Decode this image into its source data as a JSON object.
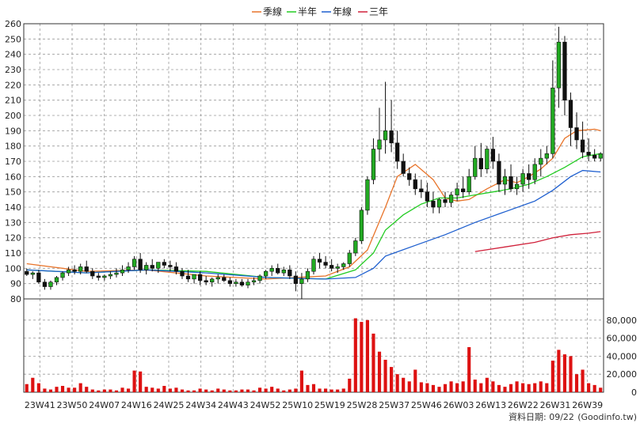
{
  "chart_data": {
    "type": "candlestick",
    "legend": [
      {
        "name": "季線",
        "color": "#e8742a"
      },
      {
        "name": "半年",
        "color": "#22cc22"
      },
      {
        "name": "年線",
        "color": "#1e5fcf"
      },
      {
        "name": "三年",
        "color": "#d0203a"
      }
    ],
    "price_axis": {
      "ylim": [
        80,
        260
      ],
      "ticks": [
        80,
        90,
        100,
        110,
        120,
        130,
        140,
        150,
        160,
        170,
        180,
        190,
        200,
        210,
        220,
        230,
        240,
        250,
        260
      ]
    },
    "volume_axis": {
      "ylim": [
        0,
        100000
      ],
      "ticks": [
        0,
        20000,
        40000,
        60000,
        80000
      ],
      "tick_labels": [
        "0",
        "20,000",
        "40,000",
        "60,000",
        "80,000"
      ]
    },
    "x_tick_labels": [
      "23W41",
      "23W50",
      "24W07",
      "24W16",
      "24W25",
      "24W34",
      "24W43",
      "24W52",
      "25W10",
      "25W19",
      "25W28",
      "25W37",
      "25W46",
      "26W03",
      "26W13",
      "26W22",
      "26W31",
      "26W39"
    ],
    "grid": true,
    "up_color": "#22aa22",
    "down_color": "#111111",
    "volume_color": "#dd1111",
    "ohlc": [
      [
        98,
        100,
        95,
        96
      ],
      [
        96,
        98,
        93,
        97
      ],
      [
        97,
        99,
        90,
        91
      ],
      [
        91,
        93,
        86,
        88
      ],
      [
        88,
        92,
        86,
        91
      ],
      [
        91,
        95,
        89,
        94
      ],
      [
        94,
        98,
        92,
        97
      ],
      [
        97,
        101,
        95,
        99
      ],
      [
        99,
        102,
        96,
        98
      ],
      [
        98,
        103,
        96,
        101
      ],
      [
        101,
        105,
        97,
        98
      ],
      [
        98,
        100,
        93,
        95
      ],
      [
        95,
        97,
        92,
        94
      ],
      [
        94,
        96,
        92,
        95
      ],
      [
        95,
        98,
        93,
        96
      ],
      [
        96,
        100,
        94,
        97
      ],
      [
        97,
        102,
        95,
        99
      ],
      [
        99,
        104,
        97,
        101
      ],
      [
        101,
        108,
        99,
        106
      ],
      [
        106,
        110,
        97,
        99
      ],
      [
        99,
        104,
        96,
        102
      ],
      [
        102,
        106,
        98,
        100
      ],
      [
        100,
        103,
        97,
        104
      ],
      [
        104,
        106,
        100,
        102
      ],
      [
        102,
        105,
        98,
        101
      ],
      [
        101,
        104,
        96,
        98
      ],
      [
        98,
        100,
        93,
        95
      ],
      [
        95,
        99,
        91,
        93
      ],
      [
        93,
        96,
        90,
        96
      ],
      [
        96,
        98,
        89,
        92
      ],
      [
        92,
        95,
        89,
        91
      ],
      [
        91,
        94,
        88,
        93
      ],
      [
        93,
        96,
        90,
        94
      ],
      [
        94,
        96,
        91,
        92
      ],
      [
        92,
        94,
        88,
        90
      ],
      [
        90,
        93,
        88,
        91
      ],
      [
        91,
        93,
        88,
        89
      ],
      [
        89,
        93,
        87,
        91
      ],
      [
        91,
        94,
        89,
        92
      ],
      [
        92,
        96,
        90,
        95
      ],
      [
        95,
        99,
        93,
        98
      ],
      [
        98,
        102,
        95,
        100
      ],
      [
        100,
        103,
        96,
        97
      ],
      [
        97,
        101,
        95,
        99
      ],
      [
        99,
        102,
        93,
        95
      ],
      [
        95,
        98,
        85,
        90
      ],
      [
        90,
        97,
        80,
        93
      ],
      [
        93,
        100,
        91,
        98
      ],
      [
        98,
        108,
        96,
        106
      ],
      [
        106,
        110,
        100,
        104
      ],
      [
        104,
        108,
        100,
        102
      ],
      [
        102,
        106,
        98,
        100
      ],
      [
        100,
        103,
        97,
        101
      ],
      [
        101,
        104,
        99,
        103
      ],
      [
        103,
        112,
        101,
        110
      ],
      [
        110,
        120,
        108,
        118
      ],
      [
        118,
        140,
        116,
        138
      ],
      [
        138,
        160,
        135,
        158
      ],
      [
        158,
        185,
        155,
        178
      ],
      [
        178,
        205,
        170,
        184
      ],
      [
        184,
        222,
        175,
        190
      ],
      [
        190,
        210,
        176,
        182
      ],
      [
        182,
        190,
        165,
        170
      ],
      [
        170,
        175,
        160,
        162
      ],
      [
        162,
        166,
        154,
        158
      ],
      [
        158,
        162,
        148,
        152
      ],
      [
        152,
        158,
        146,
        150
      ],
      [
        150,
        156,
        140,
        144
      ],
      [
        144,
        150,
        136,
        140
      ],
      [
        140,
        146,
        136,
        145
      ],
      [
        145,
        150,
        140,
        143
      ],
      [
        143,
        150,
        140,
        148
      ],
      [
        148,
        156,
        144,
        152
      ],
      [
        152,
        160,
        146,
        150
      ],
      [
        150,
        165,
        148,
        160
      ],
      [
        160,
        180,
        158,
        172
      ],
      [
        172,
        182,
        160,
        165
      ],
      [
        165,
        180,
        162,
        178
      ],
      [
        178,
        186,
        165,
        170
      ],
      [
        170,
        175,
        150,
        155
      ],
      [
        155,
        165,
        148,
        160
      ],
      [
        160,
        168,
        150,
        152
      ],
      [
        152,
        160,
        148,
        155
      ],
      [
        155,
        165,
        150,
        162
      ],
      [
        162,
        168,
        152,
        158
      ],
      [
        158,
        172,
        155,
        168
      ],
      [
        168,
        178,
        160,
        172
      ],
      [
        172,
        180,
        168,
        175
      ],
      [
        175,
        236,
        172,
        218
      ],
      [
        218,
        258,
        205,
        248
      ],
      [
        248,
        252,
        200,
        210
      ],
      [
        210,
        215,
        180,
        192
      ],
      [
        192,
        202,
        178,
        184
      ],
      [
        184,
        196,
        172,
        176
      ],
      [
        176,
        185,
        170,
        174
      ],
      [
        174,
        178,
        170,
        172
      ],
      [
        172,
        176,
        170,
        175
      ]
    ],
    "volume": [
      9000,
      16000,
      10000,
      4000,
      3000,
      6000,
      7000,
      5000,
      5000,
      10000,
      6000,
      3000,
      2000,
      3000,
      3000,
      2000,
      5000,
      4000,
      24000,
      23000,
      6000,
      5000,
      4000,
      7000,
      4000,
      5000,
      3000,
      2000,
      2000,
      4000,
      3000,
      2000,
      4000,
      3000,
      2000,
      2000,
      3000,
      3000,
      2000,
      5000,
      4000,
      6000,
      4000,
      2000,
      3000,
      4000,
      24000,
      8000,
      9000,
      4000,
      4000,
      3000,
      3000,
      4000,
      15000,
      82000,
      78000,
      80000,
      65000,
      45000,
      36000,
      28000,
      20000,
      16000,
      12000,
      25000,
      11000,
      10000,
      8000,
      6000,
      9000,
      12000,
      10000,
      12000,
      50000,
      14000,
      10000,
      16000,
      12000,
      8000,
      6000,
      9000,
      12000,
      10000,
      9000,
      10000,
      12000,
      10000,
      35000,
      47000,
      42000,
      40000,
      20000,
      25000,
      10000,
      8000,
      5000
    ],
    "ma_season": [
      [
        0,
        103
      ],
      [
        10,
        98
      ],
      [
        20,
        99
      ],
      [
        30,
        95
      ],
      [
        40,
        93
      ],
      [
        50,
        95
      ],
      [
        54,
        101
      ],
      [
        57,
        112
      ],
      [
        60,
        140
      ],
      [
        62,
        160
      ],
      [
        65,
        168
      ],
      [
        68,
        158
      ],
      [
        70,
        146
      ],
      [
        72,
        144
      ],
      [
        74,
        145
      ],
      [
        77,
        152
      ],
      [
        80,
        158
      ],
      [
        82,
        156
      ],
      [
        84,
        160
      ],
      [
        86,
        165
      ],
      [
        88,
        172
      ],
      [
        90,
        185
      ],
      [
        92,
        190
      ],
      [
        95,
        191
      ],
      [
        96,
        190
      ]
    ],
    "ma_half": [
      [
        0,
        99
      ],
      [
        10,
        97
      ],
      [
        20,
        99
      ],
      [
        30,
        98
      ],
      [
        40,
        94
      ],
      [
        50,
        93
      ],
      [
        55,
        99
      ],
      [
        58,
        110
      ],
      [
        60,
        125
      ],
      [
        63,
        135
      ],
      [
        66,
        142
      ],
      [
        69,
        146
      ],
      [
        72,
        146
      ],
      [
        75,
        148
      ],
      [
        78,
        150
      ],
      [
        81,
        152
      ],
      [
        84,
        155
      ],
      [
        87,
        160
      ],
      [
        90,
        166
      ],
      [
        93,
        173
      ],
      [
        96,
        175
      ]
    ],
    "ma_year": [
      [
        0,
        99
      ],
      [
        10,
        97
      ],
      [
        20,
        99
      ],
      [
        30,
        97
      ],
      [
        40,
        94
      ],
      [
        50,
        93
      ],
      [
        55,
        94
      ],
      [
        58,
        100
      ],
      [
        60,
        108
      ],
      [
        65,
        115
      ],
      [
        70,
        122
      ],
      [
        75,
        130
      ],
      [
        80,
        137
      ],
      [
        85,
        144
      ],
      [
        88,
        151
      ],
      [
        91,
        160
      ],
      [
        93,
        164
      ],
      [
        96,
        163
      ]
    ],
    "ma_3y": [
      [
        75,
        111
      ],
      [
        80,
        114
      ],
      [
        85,
        117
      ],
      [
        88,
        120
      ],
      [
        91,
        122
      ],
      [
        94,
        123
      ],
      [
        96,
        124
      ]
    ]
  },
  "footer": {
    "label": "資料日期: 09/22",
    "source": "(Goodinfo.tw)"
  }
}
